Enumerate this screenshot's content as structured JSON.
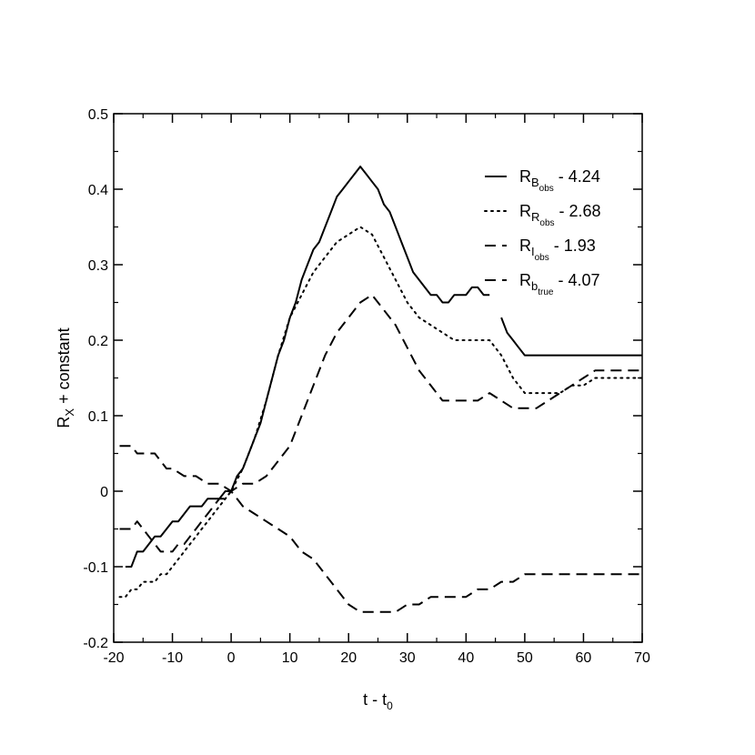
{
  "chart_data": {
    "type": "line",
    "xlim": [
      -20,
      70
    ],
    "ylim": [
      -0.2,
      0.5
    ],
    "x_ticks": [
      -20,
      -10,
      0,
      10,
      20,
      30,
      40,
      50,
      60,
      70
    ],
    "x_tick_labels": [
      "-20",
      "-10",
      "0",
      "10",
      "20",
      "30",
      "40",
      "50",
      "60",
      "70"
    ],
    "y_ticks": [
      -0.2,
      -0.1,
      0,
      0.1,
      0.2,
      0.3,
      0.4,
      0.5
    ],
    "y_tick_labels": [
      "-0.2",
      "-0.1",
      "0",
      "0.1",
      "0.2",
      "0.3",
      "0.4",
      "0.5"
    ],
    "xlabel": {
      "main": "t - t",
      "sub": "0"
    },
    "ylabel": {
      "main": "R",
      "sub": "X",
      "rest": " + constant"
    },
    "grid": false,
    "legend_position": "top-right",
    "series": [
      {
        "legend": {
          "main": "R",
          "sub": "B",
          "subsub": "obs",
          "rest": " - 4.24"
        },
        "style": "solid",
        "x": [
          -18,
          -17,
          -16,
          -15,
          -14,
          -13,
          -12,
          -11,
          -10,
          -9,
          -8,
          -7,
          -6,
          -5,
          -4,
          -3,
          -2,
          -1,
          0,
          1,
          2,
          3,
          4,
          5,
          6,
          7,
          8,
          9,
          10,
          11,
          12,
          13,
          14,
          15,
          16,
          17,
          18,
          19,
          20,
          21,
          22,
          23,
          24,
          25,
          26,
          27,
          28,
          29,
          30,
          31,
          32,
          33,
          34,
          35,
          36,
          37,
          38,
          39,
          40,
          41,
          42,
          43,
          44,
          45,
          46,
          47,
          48,
          49,
          50,
          60,
          70
        ],
        "y": [
          -0.1,
          -0.1,
          -0.08,
          -0.08,
          -0.07,
          -0.06,
          -0.06,
          -0.05,
          -0.04,
          -0.04,
          -0.03,
          -0.02,
          -0.02,
          -0.02,
          -0.01,
          -0.01,
          -0.01,
          0.0,
          0.0,
          0.02,
          0.03,
          0.05,
          0.07,
          0.09,
          0.12,
          0.15,
          0.18,
          0.2,
          0.23,
          0.25,
          0.28,
          0.3,
          0.32,
          0.33,
          0.35,
          0.37,
          0.39,
          0.4,
          0.41,
          0.42,
          0.43,
          0.42,
          0.41,
          0.4,
          0.38,
          0.37,
          0.35,
          0.33,
          0.31,
          0.29,
          0.28,
          0.27,
          0.26,
          0.26,
          0.25,
          0.25,
          0.26,
          0.26,
          0.26,
          0.27,
          0.27,
          0.26,
          0.26,
          null,
          0.23,
          0.21,
          0.2,
          0.19,
          0.18,
          0.18,
          0.18
        ]
      },
      {
        "legend": {
          "main": "R",
          "sub": "R",
          "subsub": "obs",
          "rest": " - 2.68"
        },
        "style": "dotted",
        "x": [
          -19,
          -18,
          -17,
          -16,
          -15,
          -14,
          -13,
          -12,
          -11,
          -10,
          -9,
          -8,
          -7,
          -6,
          -5,
          -4,
          -3,
          -2,
          -1,
          0,
          2,
          4,
          6,
          8,
          10,
          12,
          14,
          16,
          18,
          20,
          22,
          24,
          26,
          28,
          30,
          32,
          34,
          36,
          38,
          40,
          42,
          44,
          46,
          48,
          50,
          52,
          54,
          56,
          58,
          60,
          62,
          70
        ],
        "y": [
          -0.14,
          -0.14,
          -0.13,
          -0.13,
          -0.12,
          -0.12,
          -0.12,
          -0.11,
          -0.11,
          -0.1,
          -0.09,
          -0.08,
          -0.07,
          -0.06,
          -0.05,
          -0.04,
          -0.03,
          -0.02,
          -0.01,
          0.0,
          0.03,
          0.07,
          0.12,
          0.18,
          0.23,
          0.26,
          0.29,
          0.31,
          0.33,
          0.34,
          0.35,
          0.34,
          0.31,
          0.28,
          0.25,
          0.23,
          0.22,
          0.21,
          0.2,
          0.2,
          0.2,
          0.2,
          0.18,
          0.15,
          0.13,
          0.13,
          0.13,
          0.13,
          0.14,
          0.14,
          0.15,
          0.15
        ]
      },
      {
        "legend": {
          "main": "R",
          "sub": "I",
          "subsub": "obs",
          "rest": " - 1.93"
        },
        "style": "dashed",
        "x": [
          -19,
          -18,
          -17,
          -16,
          -15,
          -14,
          -13,
          -12,
          -11,
          -10,
          -9,
          -8,
          -7,
          -6,
          -5,
          -4,
          -3,
          -2,
          -1,
          0,
          2,
          4,
          6,
          8,
          10,
          12,
          14,
          16,
          18,
          20,
          22,
          24,
          26,
          28,
          30,
          32,
          34,
          36,
          38,
          40,
          42,
          44,
          46,
          48,
          50,
          52,
          54,
          56,
          58,
          60,
          62,
          70
        ],
        "y": [
          -0.05,
          -0.05,
          -0.05,
          -0.04,
          -0.05,
          -0.06,
          -0.07,
          -0.08,
          -0.08,
          -0.08,
          -0.07,
          -0.07,
          -0.06,
          -0.05,
          -0.04,
          -0.03,
          -0.02,
          -0.01,
          -0.01,
          0.0,
          0.01,
          0.01,
          0.02,
          0.04,
          0.06,
          0.1,
          0.14,
          0.18,
          0.21,
          0.23,
          0.25,
          0.26,
          0.24,
          0.22,
          0.19,
          0.16,
          0.14,
          0.12,
          0.12,
          0.12,
          0.12,
          0.13,
          0.12,
          0.11,
          0.11,
          0.11,
          0.12,
          0.13,
          0.14,
          0.15,
          0.16,
          0.16
        ]
      },
      {
        "legend": {
          "main": "R",
          "sub": "b",
          "subsub": "true",
          "rest": " - 4.07"
        },
        "style": "dashed",
        "x": [
          -19,
          -17,
          -16,
          -14,
          -13,
          -12,
          -11,
          -10,
          -8,
          -6,
          -4,
          -2,
          0,
          2,
          4,
          6,
          8,
          10,
          12,
          14,
          16,
          18,
          20,
          22,
          24,
          26,
          28,
          30,
          32,
          34,
          36,
          38,
          40,
          42,
          44,
          46,
          48,
          50,
          60,
          70
        ],
        "y": [
          0.06,
          0.06,
          0.05,
          0.05,
          0.05,
          0.04,
          0.03,
          0.03,
          0.02,
          0.02,
          0.01,
          0.01,
          0.0,
          -0.02,
          -0.03,
          -0.04,
          -0.05,
          -0.06,
          -0.08,
          -0.09,
          -0.11,
          -0.13,
          -0.15,
          -0.16,
          -0.16,
          -0.16,
          -0.16,
          -0.15,
          -0.15,
          -0.14,
          -0.14,
          -0.14,
          -0.14,
          -0.13,
          -0.13,
          -0.12,
          -0.12,
          -0.11,
          -0.11,
          -0.11
        ]
      }
    ]
  }
}
